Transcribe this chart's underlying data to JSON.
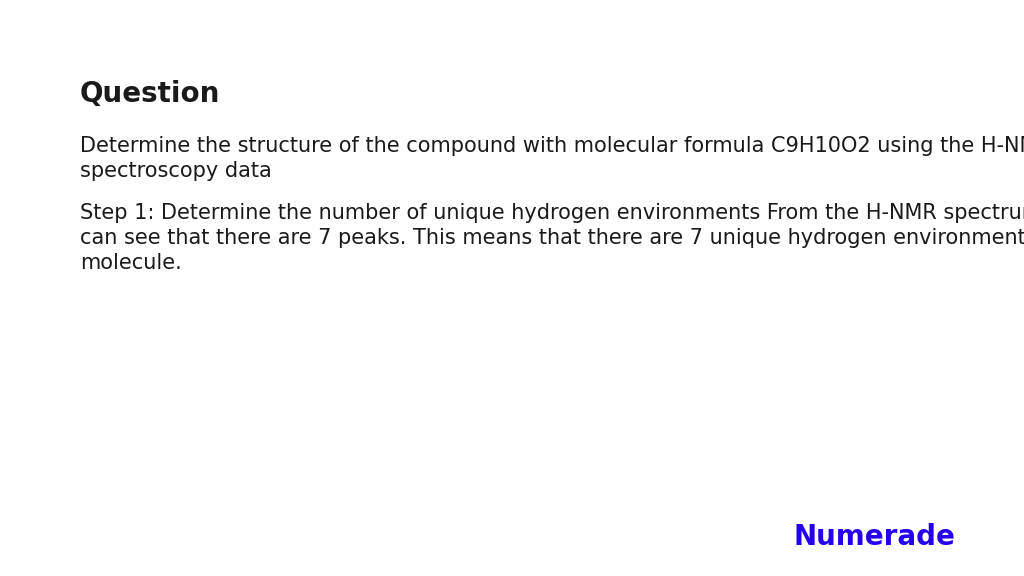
{
  "background_color": "#ffffff",
  "question_label": "Question",
  "question_label_fontsize": 20,
  "question_text_line1": "Determine the structure of the compound with molecular formula C9H10O2 using the H-NMR",
  "question_text_line2": "spectroscopy data",
  "question_text_fontsize": 15,
  "step_text_line1": "Step 1: Determine the number of unique hydrogen environments From the H-NMR spectrum, we",
  "step_text_line2": "can see that there are 7 peaks. This means that there are 7 unique hydrogen environments in the",
  "step_text_line3": "molecule.",
  "step_text_fontsize": 15,
  "numerade_text": "Numerade",
  "numerade_color": "#2200ee",
  "numerade_fontsize": 20,
  "text_color": "#1a1a1a",
  "fig_width": 10.24,
  "fig_height": 5.76,
  "dpi": 100
}
